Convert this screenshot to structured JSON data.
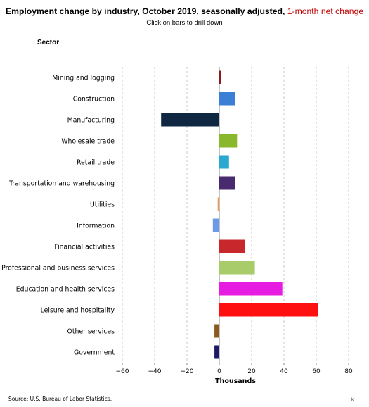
{
  "header": {
    "title_main": "Employment change by industry, October 2019, seasonally adjusted, ",
    "title_highlight": "1-month net change",
    "subtitle": "Click on bars to drill down",
    "sector_label": "Sector"
  },
  "footer": {
    "source": "Source: U.S. Bureau of Labor Statistics.",
    "corner_mark": "k"
  },
  "chart_data": {
    "type": "bar",
    "orientation": "horizontal",
    "title": "Employment change by industry, October 2019, seasonally adjusted, 1-month net change",
    "subtitle": "Click on bars to drill down",
    "xlabel": "Thousands",
    "ylabel": "Sector",
    "xlim": [
      -60,
      80
    ],
    "xticks": [
      -60,
      -40,
      -20,
      0,
      20,
      40,
      60,
      80
    ],
    "xtick_labels": [
      "−60",
      "−40",
      "−20",
      "0",
      "20",
      "40",
      "60",
      "80"
    ],
    "grid": "vertical dashed",
    "categories": [
      "Mining and logging",
      "Construction",
      "Manufacturing",
      "Wholesale trade",
      "Retail trade",
      "Transportation and warehousing",
      "Utilities",
      "Information",
      "Financial activities",
      "Professional and business services",
      "Education and health services",
      "Leisure and hospitality",
      "Other services",
      "Government"
    ],
    "values": [
      1,
      10,
      -36,
      11,
      6,
      10,
      -1,
      -4,
      16,
      22,
      39,
      61,
      -3,
      -3
    ],
    "colors": [
      "#8b1a1a",
      "#3a7fd5",
      "#0f2740",
      "#8ab82c",
      "#2aa8cf",
      "#4a2a6e",
      "#f0974a",
      "#6b9be8",
      "#c8282c",
      "#a8cc6a",
      "#e61ce0",
      "#ff1010",
      "#8b5a1a",
      "#1a1a66"
    ]
  }
}
